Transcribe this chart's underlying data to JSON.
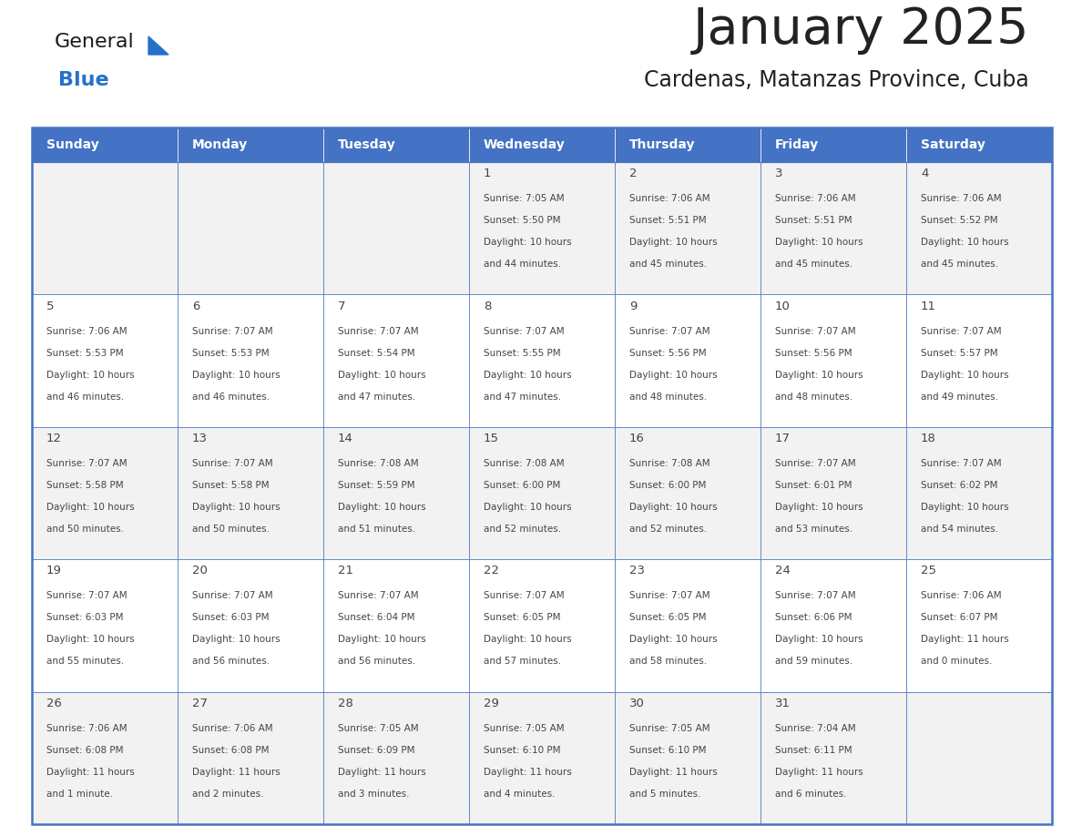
{
  "title": "January 2025",
  "subtitle": "Cardenas, Matanzas Province, Cuba",
  "header_bg_color": "#4472C4",
  "header_text_color": "#FFFFFF",
  "row_bg_even": "#F2F2F2",
  "row_bg_odd": "#FFFFFF",
  "border_color": "#4472C4",
  "day_names": [
    "Sunday",
    "Monday",
    "Tuesday",
    "Wednesday",
    "Thursday",
    "Friday",
    "Saturday"
  ],
  "title_color": "#222222",
  "subtitle_color": "#222222",
  "cell_text_color": "#444444",
  "logo_general_color": "#1a1a1a",
  "logo_blue_color": "#2472C8",
  "logo_triangle_color": "#2472C8",
  "days": [
    {
      "day": 1,
      "col": 3,
      "row": 0,
      "sunrise": "7:05 AM",
      "sunset": "5:50 PM",
      "daylight_h": "10 hours",
      "daylight_m": "44 minutes."
    },
    {
      "day": 2,
      "col": 4,
      "row": 0,
      "sunrise": "7:06 AM",
      "sunset": "5:51 PM",
      "daylight_h": "10 hours",
      "daylight_m": "45 minutes."
    },
    {
      "day": 3,
      "col": 5,
      "row": 0,
      "sunrise": "7:06 AM",
      "sunset": "5:51 PM",
      "daylight_h": "10 hours",
      "daylight_m": "45 minutes."
    },
    {
      "day": 4,
      "col": 6,
      "row": 0,
      "sunrise": "7:06 AM",
      "sunset": "5:52 PM",
      "daylight_h": "10 hours",
      "daylight_m": "45 minutes."
    },
    {
      "day": 5,
      "col": 0,
      "row": 1,
      "sunrise": "7:06 AM",
      "sunset": "5:53 PM",
      "daylight_h": "10 hours",
      "daylight_m": "46 minutes."
    },
    {
      "day": 6,
      "col": 1,
      "row": 1,
      "sunrise": "7:07 AM",
      "sunset": "5:53 PM",
      "daylight_h": "10 hours",
      "daylight_m": "46 minutes."
    },
    {
      "day": 7,
      "col": 2,
      "row": 1,
      "sunrise": "7:07 AM",
      "sunset": "5:54 PM",
      "daylight_h": "10 hours",
      "daylight_m": "47 minutes."
    },
    {
      "day": 8,
      "col": 3,
      "row": 1,
      "sunrise": "7:07 AM",
      "sunset": "5:55 PM",
      "daylight_h": "10 hours",
      "daylight_m": "47 minutes."
    },
    {
      "day": 9,
      "col": 4,
      "row": 1,
      "sunrise": "7:07 AM",
      "sunset": "5:56 PM",
      "daylight_h": "10 hours",
      "daylight_m": "48 minutes."
    },
    {
      "day": 10,
      "col": 5,
      "row": 1,
      "sunrise": "7:07 AM",
      "sunset": "5:56 PM",
      "daylight_h": "10 hours",
      "daylight_m": "48 minutes."
    },
    {
      "day": 11,
      "col": 6,
      "row": 1,
      "sunrise": "7:07 AM",
      "sunset": "5:57 PM",
      "daylight_h": "10 hours",
      "daylight_m": "49 minutes."
    },
    {
      "day": 12,
      "col": 0,
      "row": 2,
      "sunrise": "7:07 AM",
      "sunset": "5:58 PM",
      "daylight_h": "10 hours",
      "daylight_m": "50 minutes."
    },
    {
      "day": 13,
      "col": 1,
      "row": 2,
      "sunrise": "7:07 AM",
      "sunset": "5:58 PM",
      "daylight_h": "10 hours",
      "daylight_m": "50 minutes."
    },
    {
      "day": 14,
      "col": 2,
      "row": 2,
      "sunrise": "7:08 AM",
      "sunset": "5:59 PM",
      "daylight_h": "10 hours",
      "daylight_m": "51 minutes."
    },
    {
      "day": 15,
      "col": 3,
      "row": 2,
      "sunrise": "7:08 AM",
      "sunset": "6:00 PM",
      "daylight_h": "10 hours",
      "daylight_m": "52 minutes."
    },
    {
      "day": 16,
      "col": 4,
      "row": 2,
      "sunrise": "7:08 AM",
      "sunset": "6:00 PM",
      "daylight_h": "10 hours",
      "daylight_m": "52 minutes."
    },
    {
      "day": 17,
      "col": 5,
      "row": 2,
      "sunrise": "7:07 AM",
      "sunset": "6:01 PM",
      "daylight_h": "10 hours",
      "daylight_m": "53 minutes."
    },
    {
      "day": 18,
      "col": 6,
      "row": 2,
      "sunrise": "7:07 AM",
      "sunset": "6:02 PM",
      "daylight_h": "10 hours",
      "daylight_m": "54 minutes."
    },
    {
      "day": 19,
      "col": 0,
      "row": 3,
      "sunrise": "7:07 AM",
      "sunset": "6:03 PM",
      "daylight_h": "10 hours",
      "daylight_m": "55 minutes."
    },
    {
      "day": 20,
      "col": 1,
      "row": 3,
      "sunrise": "7:07 AM",
      "sunset": "6:03 PM",
      "daylight_h": "10 hours",
      "daylight_m": "56 minutes."
    },
    {
      "day": 21,
      "col": 2,
      "row": 3,
      "sunrise": "7:07 AM",
      "sunset": "6:04 PM",
      "daylight_h": "10 hours",
      "daylight_m": "56 minutes."
    },
    {
      "day": 22,
      "col": 3,
      "row": 3,
      "sunrise": "7:07 AM",
      "sunset": "6:05 PM",
      "daylight_h": "10 hours",
      "daylight_m": "57 minutes."
    },
    {
      "day": 23,
      "col": 4,
      "row": 3,
      "sunrise": "7:07 AM",
      "sunset": "6:05 PM",
      "daylight_h": "10 hours",
      "daylight_m": "58 minutes."
    },
    {
      "day": 24,
      "col": 5,
      "row": 3,
      "sunrise": "7:07 AM",
      "sunset": "6:06 PM",
      "daylight_h": "10 hours",
      "daylight_m": "59 minutes."
    },
    {
      "day": 25,
      "col": 6,
      "row": 3,
      "sunrise": "7:06 AM",
      "sunset": "6:07 PM",
      "daylight_h": "11 hours",
      "daylight_m": "0 minutes."
    },
    {
      "day": 26,
      "col": 0,
      "row": 4,
      "sunrise": "7:06 AM",
      "sunset": "6:08 PM",
      "daylight_h": "11 hours",
      "daylight_m": "1 minute."
    },
    {
      "day": 27,
      "col": 1,
      "row": 4,
      "sunrise": "7:06 AM",
      "sunset": "6:08 PM",
      "daylight_h": "11 hours",
      "daylight_m": "2 minutes."
    },
    {
      "day": 28,
      "col": 2,
      "row": 4,
      "sunrise": "7:05 AM",
      "sunset": "6:09 PM",
      "daylight_h": "11 hours",
      "daylight_m": "3 minutes."
    },
    {
      "day": 29,
      "col": 3,
      "row": 4,
      "sunrise": "7:05 AM",
      "sunset": "6:10 PM",
      "daylight_h": "11 hours",
      "daylight_m": "4 minutes."
    },
    {
      "day": 30,
      "col": 4,
      "row": 4,
      "sunrise": "7:05 AM",
      "sunset": "6:10 PM",
      "daylight_h": "11 hours",
      "daylight_m": "5 minutes."
    },
    {
      "day": 31,
      "col": 5,
      "row": 4,
      "sunrise": "7:04 AM",
      "sunset": "6:11 PM",
      "daylight_h": "11 hours",
      "daylight_m": "6 minutes."
    }
  ]
}
